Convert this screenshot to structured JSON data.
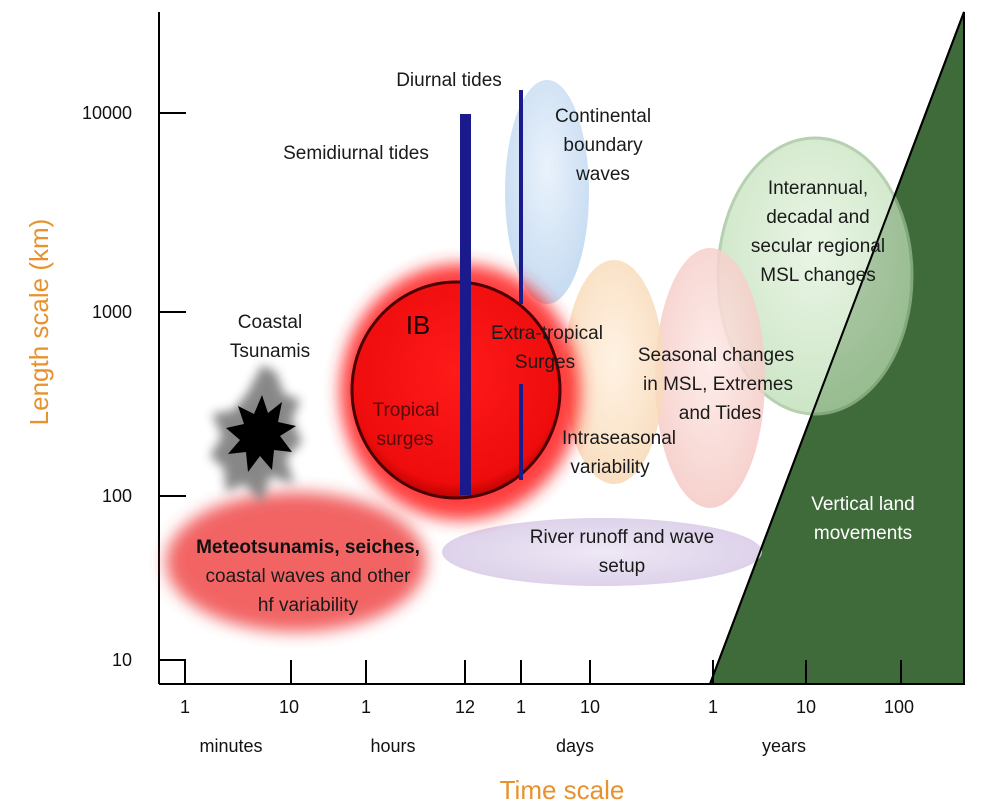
{
  "colors": {
    "axis_title": "#e8922e",
    "tide_bar": "#1a1a8c",
    "land_fill": "#3f6b3a",
    "tropical_fill": "#ee1111",
    "meteo_fill": "#f04848",
    "continental_fill": "#c7dcf2",
    "river_fill": "#d9cde8",
    "intraseasonal_fill": "#fbe0c4",
    "seasonal_fill": "#f8d4d0",
    "interannual_fill": "#cfe8c8",
    "tsunami_fill": "#000000"
  },
  "axes": {
    "x_title": "Time scale",
    "y_title": "Length scale  (km)",
    "y_ticks": [
      "10000",
      "1000",
      "100",
      "10"
    ],
    "x_ticks": [
      "1",
      "10",
      "1",
      "12",
      "1",
      "10",
      "1",
      "10",
      "100"
    ],
    "x_units": [
      "minutes",
      "hours",
      "days",
      "years"
    ]
  },
  "labels": {
    "diurnal": "Diurnal tides",
    "semidiurnal": "Semidiurnal tides",
    "continental": [
      "Continental",
      "boundary",
      "waves"
    ],
    "interannual": [
      "Interannual,",
      "decadal and",
      "secular regional",
      "MSL changes"
    ],
    "coastal_tsunamis": [
      "Coastal",
      "Tsunamis"
    ],
    "ib": "IB",
    "extra_tropical": [
      "Extra-tropical",
      "Surges"
    ],
    "seasonal": [
      "Seasonal changes",
      "in MSL, Extremes",
      "and Tides"
    ],
    "tropical": [
      "Tropical",
      "surges"
    ],
    "intraseasonal": [
      "Intraseasonal",
      "variability"
    ],
    "vertical_land": [
      "Vertical land",
      "movements"
    ],
    "river_runoff": [
      "River runoff and wave",
      "setup"
    ],
    "meteotsunamis": [
      "Meteotsunamis, seiches,",
      "coastal waves and other",
      "hf variability"
    ]
  }
}
